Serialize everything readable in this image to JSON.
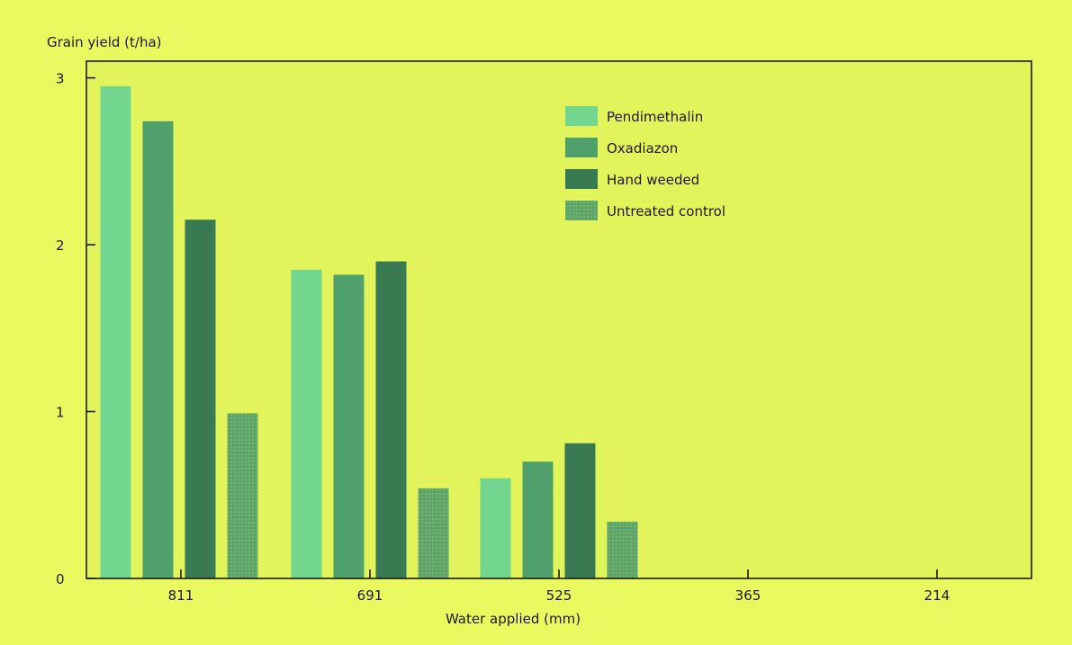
{
  "colors": {
    "background": "#e9fa60",
    "plot_background": "#e2f45c",
    "axis": "#1a1a12",
    "pendimethalin": "#72d68f",
    "oxadiazon": "#4fa06a",
    "hand_weeded": "#3a7a52",
    "untreated_control": "#5ea46a"
  },
  "chart_data": {
    "type": "bar",
    "title": "",
    "ylabel": "Grain yield (t/ha)",
    "xlabel": "Water applied (mm)",
    "categories": [
      "811",
      "691",
      "525",
      "365",
      "214"
    ],
    "ylim": [
      0,
      3.1
    ],
    "yticks": [
      0,
      1,
      2,
      3
    ],
    "grid": false,
    "legend_position": "top-right",
    "series": [
      {
        "name": "Pendimethalin",
        "values": [
          2.95,
          1.85,
          0.6,
          null,
          null
        ]
      },
      {
        "name": "Oxadiazon",
        "values": [
          2.74,
          1.82,
          0.7,
          null,
          null
        ]
      },
      {
        "name": "Hand weeded",
        "values": [
          2.15,
          1.9,
          0.81,
          null,
          null
        ]
      },
      {
        "name": "Untreated control",
        "values": [
          0.99,
          0.54,
          0.34,
          null,
          null
        ]
      }
    ]
  }
}
